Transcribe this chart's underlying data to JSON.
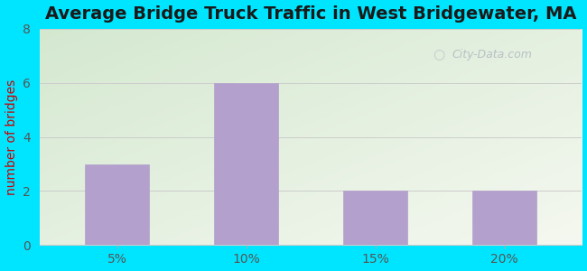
{
  "title": "Average Bridge Truck Traffic in West Bridgewater, MA",
  "categories": [
    "5%",
    "10%",
    "15%",
    "20%"
  ],
  "values": [
    3,
    6,
    2,
    2
  ],
  "bar_color": "#b3a0cc",
  "bar_edge_color": "#b3a0cc",
  "ylabel": "number of bridges",
  "ylim": [
    0,
    8
  ],
  "yticks": [
    0,
    2,
    4,
    6,
    8
  ],
  "title_fontsize": 14,
  "title_color": "#1a1a1a",
  "axis_label_color": "#cc0000",
  "tick_color": "#555555",
  "background_outer": "#00e5ff",
  "grid_color": "#cccccc",
  "watermark_text": "City-Data.com",
  "watermark_color": "#b0b8c0",
  "bg_color_topleft": "#d4e8d0",
  "bg_color_bottomright": "#f5f8f0"
}
